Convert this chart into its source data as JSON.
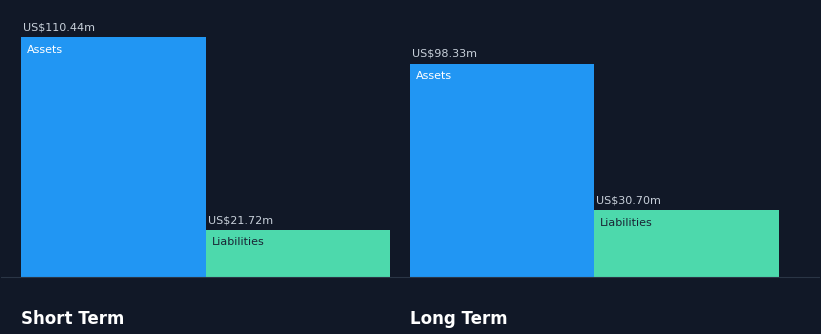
{
  "background_color": "#111827",
  "sections": [
    {
      "label": "Short Term",
      "assets_value": 110.44,
      "assets_label": "US$110.44m",
      "assets_inner_label": "Assets",
      "liabilities_value": 21.72,
      "liabilities_label": "US$21.72m",
      "liabilities_inner_label": "Liabilities"
    },
    {
      "label": "Long Term",
      "assets_value": 98.33,
      "assets_label": "US$98.33m",
      "assets_inner_label": "Assets",
      "liabilities_value": 30.7,
      "liabilities_label": "US$30.70m",
      "liabilities_inner_label": "Liabilities"
    }
  ],
  "assets_color": "#2196f3",
  "liabilities_color": "#4dd9ac",
  "assets_inner_color": "#ffffff",
  "liabilities_inner_color": "#1a2535",
  "label_color": "#c8d0da",
  "section_label_color": "#ffffff",
  "value_label_fontsize": 8.0,
  "inner_label_fontsize": 8.0,
  "section_label_fontsize": 12,
  "max_value": 110.44,
  "bottom_line_color": "#2a3545"
}
